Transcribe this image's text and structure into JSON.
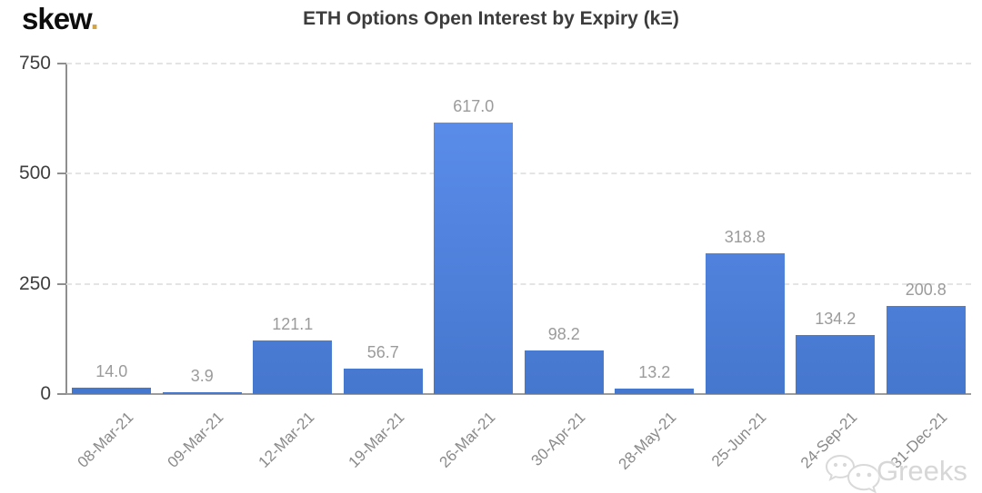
{
  "logo": {
    "text": "skew",
    "dot": "."
  },
  "chart_data": {
    "type": "bar",
    "title": "ETH Options Open Interest by Expiry (kΞ)",
    "xlabel": "",
    "ylabel": "",
    "categories": [
      "08-Mar-21",
      "09-Mar-21",
      "12-Mar-21",
      "19-Mar-21",
      "26-Mar-21",
      "30-Apr-21",
      "28-May-21",
      "25-Jun-21",
      "24-Sep-21",
      "31-Dec-21"
    ],
    "values": [
      14.0,
      3.9,
      121.1,
      56.7,
      617.0,
      98.2,
      13.2,
      318.8,
      134.2,
      200.8
    ],
    "value_labels": [
      "14.0",
      "3.9",
      "121.1",
      "56.7",
      "617.0",
      "98.2",
      "13.2",
      "318.8",
      "134.2",
      "200.8"
    ],
    "ylim": [
      0,
      750
    ],
    "yticks": [
      0,
      250,
      500,
      750
    ],
    "ytick_labels": [
      "0",
      "250",
      "500",
      "750"
    ],
    "grid": "horizontal dashed gridlines at y ticks",
    "legend": "none",
    "colors": {
      "bar_gradient_top": "#5e90f0",
      "bar_gradient_bottom": "#4677ce",
      "value_label": "#9b9b9b",
      "axis_label": "#3f3f3f",
      "x_label": "#8a8a8a",
      "gridline": "#e4e4e4",
      "axis_line": "#8f8f8f",
      "title": "#3c3c3c",
      "logo_dot": "#d2a445",
      "watermark": "#d7d7d7"
    }
  },
  "watermark": {
    "text": "Greeks",
    "icon": "wechat-chat-bubbles"
  }
}
